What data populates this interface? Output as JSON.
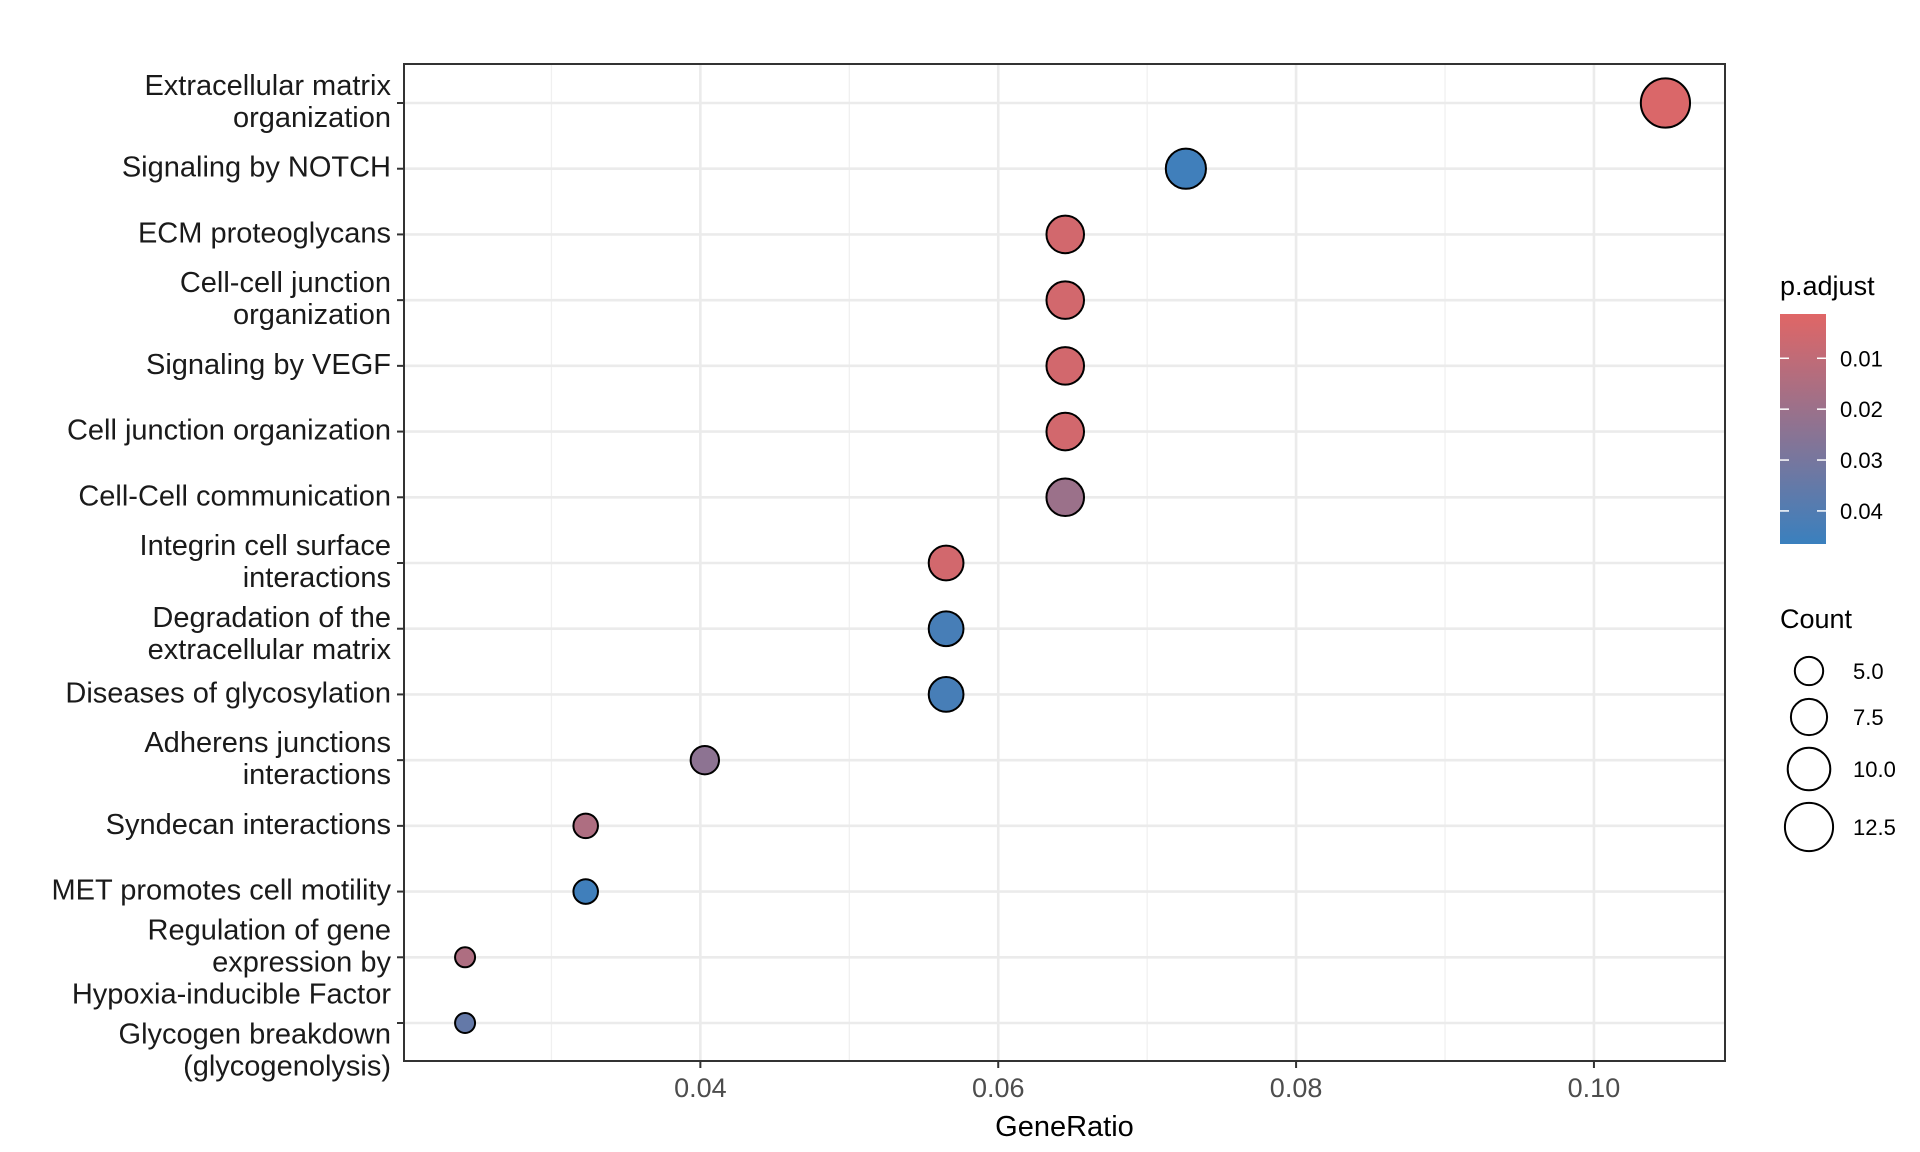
{
  "chart_data": {
    "type": "scatter",
    "subtype": "dot-plot",
    "xlabel": "GeneRatio",
    "ylabel": "",
    "xlim": [
      0.0201,
      0.1088
    ],
    "xticks": [
      0.04,
      0.06,
      0.08,
      0.1
    ],
    "xtick_labels": [
      "0.04",
      "0.06",
      "0.08",
      "0.10"
    ],
    "grid": true,
    "points": [
      {
        "label": [
          "Extracellular matrix",
          "organization"
        ],
        "gene_ratio": 0.1048,
        "count": 13,
        "p_adjust": 0.003
      },
      {
        "label": [
          "Signaling by NOTCH"
        ],
        "gene_ratio": 0.0726,
        "count": 9,
        "p_adjust": 0.045
      },
      {
        "label": [
          "ECM proteoglycans"
        ],
        "gene_ratio": 0.0645,
        "count": 8,
        "p_adjust": 0.005
      },
      {
        "label": [
          "Cell-cell junction",
          "organization"
        ],
        "gene_ratio": 0.0645,
        "count": 8,
        "p_adjust": 0.005
      },
      {
        "label": [
          "Signaling by VEGF"
        ],
        "gene_ratio": 0.0645,
        "count": 8,
        "p_adjust": 0.005
      },
      {
        "label": [
          "Cell junction organization"
        ],
        "gene_ratio": 0.0645,
        "count": 8,
        "p_adjust": 0.005
      },
      {
        "label": [
          "Cell-Cell communication"
        ],
        "gene_ratio": 0.0645,
        "count": 8,
        "p_adjust": 0.02
      },
      {
        "label": [
          "Integrin cell surface",
          "interactions"
        ],
        "gene_ratio": 0.0565,
        "count": 7,
        "p_adjust": 0.005
      },
      {
        "label": [
          "Degradation of the",
          "extracellular matrix"
        ],
        "gene_ratio": 0.0565,
        "count": 7,
        "p_adjust": 0.043
      },
      {
        "label": [
          "Diseases of glycosylation"
        ],
        "gene_ratio": 0.0565,
        "count": 7,
        "p_adjust": 0.043
      },
      {
        "label": [
          "Adherens junctions",
          "interactions"
        ],
        "gene_ratio": 0.0403,
        "count": 5,
        "p_adjust": 0.024
      },
      {
        "label": [
          "Syndecan interactions"
        ],
        "gene_ratio": 0.0323,
        "count": 4,
        "p_adjust": 0.015
      },
      {
        "label": [
          "MET promotes cell motility"
        ],
        "gene_ratio": 0.0323,
        "count": 4,
        "p_adjust": 0.045
      },
      {
        "label": [
          "Regulation of gene",
          "expression by",
          "Hypoxia-inducible Factor"
        ],
        "gene_ratio": 0.0242,
        "count": 3,
        "p_adjust": 0.015
      },
      {
        "label": [
          "Glycogen breakdown",
          "(glycogenolysis)"
        ],
        "gene_ratio": 0.0242,
        "count": 3,
        "p_adjust": 0.035
      }
    ],
    "color_legend": {
      "title": "p.adjust",
      "range": [
        0.0013,
        0.0465
      ],
      "ticks": [
        0.01,
        0.02,
        0.03,
        0.04
      ],
      "tick_labels": [
        "0.01",
        "0.02",
        "0.03",
        "0.04"
      ],
      "low_color": "#E06666",
      "high_color": "#3A80BE"
    },
    "size_legend": {
      "title": "Count",
      "values": [
        5.0,
        7.5,
        10.0,
        12.5
      ],
      "labels": [
        "5.0",
        "7.5",
        "10.0",
        "12.5"
      ]
    }
  }
}
